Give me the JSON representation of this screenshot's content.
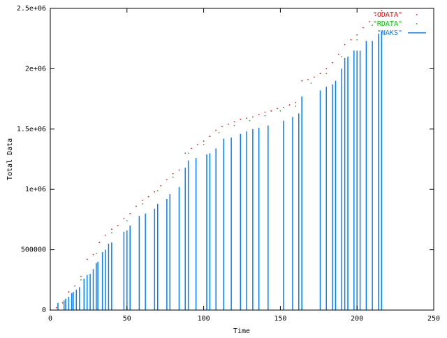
{
  "chart_data": {
    "type": "scatter",
    "x_label": "Time",
    "y_label": "Total Data",
    "xlim": [
      0,
      250
    ],
    "ylim": [
      0,
      2500000
    ],
    "xticks": [
      0,
      50,
      100,
      150,
      200,
      250
    ],
    "yticks": [
      0,
      500000,
      {
        "value": 1000000,
        "label": "1e+06"
      },
      {
        "value": 1500000,
        "label": "1.5e+06"
      },
      {
        "value": 2000000,
        "label": "2e+06"
      },
      {
        "value": 2500000,
        "label": "2.5e+06"
      }
    ],
    "grid": false,
    "legend": "top right",
    "series": [
      {
        "name": "\"ODATA\"",
        "color": "#ff0000",
        "style": "dots",
        "x": [
          0,
          4,
          8,
          12,
          16,
          20,
          24,
          28,
          32,
          36,
          40,
          44,
          48,
          52,
          56,
          60,
          64,
          68,
          72,
          76,
          80,
          84,
          88,
          92,
          96,
          100,
          104,
          108,
          112,
          116,
          120,
          124,
          128,
          132,
          136,
          140,
          144,
          148,
          152,
          156,
          160,
          164,
          168,
          172,
          176,
          180,
          184,
          188,
          192,
          196,
          200,
          204,
          208,
          212,
          216
        ],
        "values": [
          0,
          20000,
          60000,
          150000,
          200000,
          280000,
          420000,
          460000,
          560000,
          620000,
          670000,
          700000,
          760000,
          800000,
          860000,
          910000,
          940000,
          980000,
          1030000,
          1080000,
          1130000,
          1160000,
          1300000,
          1340000,
          1370000,
          1400000,
          1440000,
          1490000,
          1520000,
          1540000,
          1560000,
          1580000,
          1590000,
          1600000,
          1620000,
          1640000,
          1650000,
          1670000,
          1680000,
          1700000,
          1720000,
          1900000,
          1910000,
          1930000,
          1960000,
          2000000,
          2050000,
          2120000,
          2200000,
          2240000,
          2280000,
          2340000,
          2390000,
          2440000,
          2480000
        ]
      },
      {
        "name": "\"RDATA\"",
        "color": "#00c000",
        "style": "dots",
        "x": [
          10,
          20,
          30,
          40,
          50,
          60,
          70,
          80,
          90,
          100,
          110,
          120,
          130,
          140,
          150,
          160,
          170,
          180,
          190,
          200,
          210
        ],
        "values": [
          90000,
          250000,
          470000,
          640000,
          740000,
          880000,
          990000,
          1100000,
          1300000,
          1370000,
          1470000,
          1530000,
          1570000,
          1610000,
          1650000,
          1690000,
          1880000,
          1960000,
          2100000,
          2240000,
          2360000
        ]
      },
      {
        "name": "\"NAKS\"",
        "color": "#0080ff",
        "style": "impulses",
        "x": [
          5,
          9,
          10,
          12,
          14,
          15,
          17,
          19,
          22,
          24,
          26,
          28,
          30,
          31,
          34,
          36,
          38,
          40,
          48,
          50,
          52,
          58,
          62,
          68,
          70,
          76,
          78,
          84,
          88,
          90,
          95,
          102,
          104,
          108,
          113,
          118,
          124,
          128,
          132,
          136,
          142,
          152,
          158,
          162,
          164,
          176,
          180,
          184,
          186,
          190,
          192,
          194,
          198,
          200,
          202,
          206,
          210,
          214,
          216
        ],
        "values": [
          60000,
          80000,
          90000,
          110000,
          140000,
          150000,
          170000,
          190000,
          260000,
          290000,
          300000,
          340000,
          390000,
          400000,
          480000,
          500000,
          550000,
          560000,
          650000,
          660000,
          700000,
          780000,
          800000,
          840000,
          880000,
          920000,
          960000,
          1020000,
          1180000,
          1240000,
          1260000,
          1290000,
          1300000,
          1340000,
          1420000,
          1430000,
          1460000,
          1480000,
          1500000,
          1510000,
          1530000,
          1570000,
          1600000,
          1630000,
          1770000,
          1820000,
          1850000,
          1870000,
          1900000,
          2000000,
          2090000,
          2100000,
          2150000,
          2150000,
          2150000,
          2230000,
          2230000,
          2290000,
          2310000
        ]
      }
    ]
  }
}
